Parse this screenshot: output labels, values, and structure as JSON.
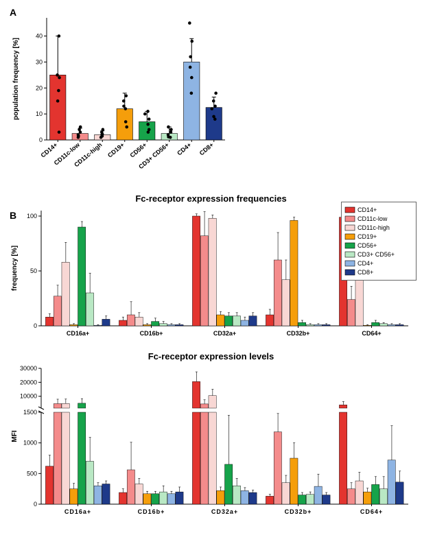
{
  "colors": {
    "series": {
      "CD14+": "#e3342f",
      "CD11c-low": "#f48b8b",
      "CD11c-high": "#f8d7d4",
      "CD19+": "#f59e0b",
      "CD56+": "#16a34a",
      "CD3+ CD56+": "#b9e8c4",
      "CD4+": "#8eb4e3",
      "CD8+": "#1e3a8a"
    },
    "bg": "#ffffff",
    "stroke": "#000000"
  },
  "seriesOrder": [
    "CD14+",
    "CD11c-low",
    "CD11c-high",
    "CD19+",
    "CD56+",
    "CD3+ CD56+",
    "CD4+",
    "CD8+"
  ],
  "panelA": {
    "label": "A",
    "ylabel": "population frequency [%]",
    "ymax": 47,
    "yticks": [
      0,
      10,
      20,
      30,
      40
    ],
    "bars": {
      "CD14+": {
        "mean": 25,
        "err": 15,
        "points": [
          3,
          15,
          19,
          24,
          25,
          40
        ]
      },
      "CD11c-low": {
        "mean": 2.5,
        "err": 2,
        "points": [
          1,
          1.5,
          2,
          3,
          4,
          5
        ]
      },
      "CD11c-high": {
        "mean": 2,
        "err": 1.5,
        "points": [
          1,
          1.5,
          2,
          2.2,
          3,
          4
        ]
      },
      "CD19+": {
        "mean": 12,
        "err": 6,
        "points": [
          5,
          7,
          12,
          13,
          15,
          17
        ]
      },
      "CD56+": {
        "mean": 7,
        "err": 4,
        "points": [
          3,
          4,
          6,
          8,
          10,
          11
        ]
      },
      "CD3+ CD56+": {
        "mean": 2.5,
        "err": 2.5,
        "points": [
          1,
          1.2,
          2,
          3,
          4,
          5
        ]
      },
      "CD4+": {
        "mean": 30,
        "err": 9,
        "points": [
          18,
          24,
          28,
          32,
          38,
          45
        ]
      },
      "CD8+": {
        "mean": 12.5,
        "err": 4,
        "points": [
          8,
          9,
          12,
          13,
          15,
          18
        ]
      }
    }
  },
  "panelB": {
    "label": "B",
    "legendTitle": "",
    "charts": [
      {
        "id": "freq",
        "title": "Fc-receptor expression frequencies",
        "ylabel": "frequency [%]",
        "ymax": 105,
        "yticks": [
          0,
          50,
          100
        ],
        "groups": [
          "CD16a+",
          "CD16b+",
          "CD32a+",
          "CD32b+",
          "CD64+"
        ],
        "bars": {
          "CD16a+": {
            "CD14+": 8,
            "CD11c-low": 27,
            "CD11c-high": 58,
            "CD19+": 1,
            "CD56+": 90,
            "CD3+ CD56+": 30,
            "CD4+": 0.5,
            "CD8+": 6
          },
          "CD16b+": {
            "CD14+": 5,
            "CD11c-low": 10,
            "CD11c-high": 8,
            "CD19+": 1,
            "CD56+": 4,
            "CD3+ CD56+": 2,
            "CD4+": 1,
            "CD8+": 1
          },
          "CD32a+": {
            "CD14+": 100,
            "CD11c-low": 82,
            "CD11c-high": 98,
            "CD19+": 10,
            "CD56+": 9,
            "CD3+ CD56+": 9,
            "CD4+": 5,
            "CD8+": 9
          },
          "CD32b+": {
            "CD14+": 10,
            "CD11c-low": 60,
            "CD11c-high": 42,
            "CD19+": 96,
            "CD56+": 3,
            "CD3+ CD56+": 1,
            "CD4+": 1,
            "CD8+": 1
          },
          "CD64+": {
            "CD14+": 99,
            "CD11c-low": 24,
            "CD11c-high": 73,
            "CD19+": 0.5,
            "CD56+": 3,
            "CD3+ CD56+": 2,
            "CD4+": 1,
            "CD8+": 1
          }
        },
        "errs": {
          "CD16a+": {
            "CD14+": 3,
            "CD11c-low": 10,
            "CD11c-high": 18,
            "CD19+": 1,
            "CD56+": 5,
            "CD3+ CD56+": 18,
            "CD4+": 0.5,
            "CD8+": 3
          },
          "CD16b+": {
            "CD14+": 3,
            "CD11c-low": 12,
            "CD11c-high": 4,
            "CD19+": 1,
            "CD56+": 3,
            "CD3+ CD56+": 2,
            "CD4+": 1,
            "CD8+": 1
          },
          "CD32a+": {
            "CD14+": 2,
            "CD11c-low": 22,
            "CD11c-high": 3,
            "CD19+": 3,
            "CD56+": 3,
            "CD3+ CD56+": 3,
            "CD4+": 3,
            "CD8+": 3
          },
          "CD32b+": {
            "CD14+": 5,
            "CD11c-low": 25,
            "CD11c-high": 18,
            "CD19+": 3,
            "CD56+": 2,
            "CD3+ CD56+": 1,
            "CD4+": 1,
            "CD8+": 1
          },
          "CD64+": {
            "CD14+": 1,
            "CD11c-low": 12,
            "CD11c-high": 8,
            "CD19+": 0.5,
            "CD56+": 2,
            "CD3+ CD56+": 1,
            "CD4+": 1,
            "CD8+": 1
          }
        }
      },
      {
        "id": "mfi",
        "title": "Fc-receptor expression levels",
        "ylabel": "MFI",
        "breakLow": 1500,
        "breakHigh": 1500,
        "upperMax": 30000,
        "upperTicks": [
          10000,
          20000,
          30000
        ],
        "lowerMax": 1500,
        "lowerTicks": [
          0,
          500,
          1000,
          1500
        ],
        "groups": [
          "CD16a+",
          "CD16b+",
          "CD32a+",
          "CD32b+",
          "CD64+"
        ],
        "bars": {
          "CD16a+": {
            "CD14+": 620,
            "CD11c-low": 4700,
            "CD11c-high": 4800,
            "CD19+": 250,
            "CD56+": 5000,
            "CD3+ CD56+": 700,
            "CD4+": 300,
            "CD8+": 330
          },
          "CD16b+": {
            "CD14+": 190,
            "CD11c-low": 560,
            "CD11c-high": 330,
            "CD19+": 170,
            "CD56+": 170,
            "CD3+ CD56+": 200,
            "CD4+": 170,
            "CD8+": 200
          },
          "CD32a+": {
            "CD14+": 20500,
            "CD11c-low": 4500,
            "CD11c-high": 10500,
            "CD19+": 220,
            "CD56+": 650,
            "CD3+ CD56+": 300,
            "CD4+": 220,
            "CD8+": 190
          },
          "CD32b+": {
            "CD14+": 130,
            "CD11c-low": 1180,
            "CD11c-high": 350,
            "CD19+": 750,
            "CD56+": 150,
            "CD3+ CD56+": 160,
            "CD4+": 290,
            "CD8+": 150
          },
          "CD64+": {
            "CD14+": 3800,
            "CD11c-low": 250,
            "CD11c-high": 380,
            "CD19+": 200,
            "CD56+": 320,
            "CD3+ CD56+": 250,
            "CD4+": 720,
            "CD8+": 360
          }
        },
        "errs": {
          "CD16a+": {
            "CD14+": 180,
            "CD11c-low": 3200,
            "CD11c-high": 3200,
            "CD19+": 90,
            "CD56+": 3300,
            "CD3+ CD56+": 390,
            "CD4+": 50,
            "CD8+": 50
          },
          "CD16b+": {
            "CD14+": 60,
            "CD11c-low": 450,
            "CD11c-high": 90,
            "CD19+": 40,
            "CD56+": 40,
            "CD3+ CD56+": 100,
            "CD4+": 40,
            "CD8+": 80
          },
          "CD32a+": {
            "CD14+": 7000,
            "CD11c-low": 3000,
            "CD11c-high": 4500,
            "CD19+": 60,
            "CD56+": 800,
            "CD3+ CD56+": 120,
            "CD4+": 50,
            "CD8+": 40
          },
          "CD32b+": {
            "CD14+": 30,
            "CD11c-low": 300,
            "CD11c-high": 120,
            "CD19+": 250,
            "CD56+": 40,
            "CD3+ CD56+": 40,
            "CD4+": 200,
            "CD8+": 40
          },
          "CD64+": {
            "CD14+": 2400,
            "CD11c-low": 100,
            "CD11c-high": 140,
            "CD19+": 60,
            "CD56+": 130,
            "CD3+ CD56+": 200,
            "CD4+": 560,
            "CD8+": 180
          }
        }
      }
    ]
  }
}
